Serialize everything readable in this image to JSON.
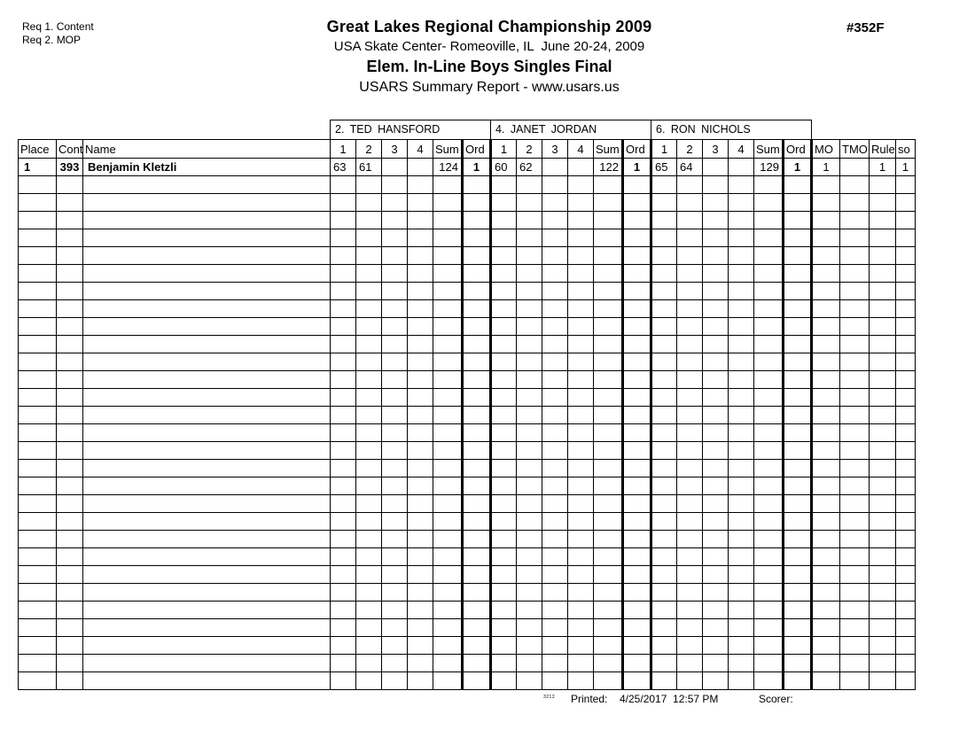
{
  "header": {
    "req_lines": [
      "Req 1. Content",
      "Req 2. MOP"
    ],
    "title": "Great Lakes Regional Championship 2009",
    "venue": "USA Skate Center- Romeoville, IL  June 20-24, 2009",
    "event": "Elem. In-Line Boys Singles Final",
    "report": "USARS Summary Report - www.usars.us",
    "report_number": "#352F"
  },
  "judges": [
    {
      "label": "2. TED HANSFORD"
    },
    {
      "label": "4. JANET JORDAN"
    },
    {
      "label": "6. RON NICHOLS"
    }
  ],
  "table": {
    "left_headers": [
      "Place",
      "Cont",
      "Name"
    ],
    "judge_subheaders": [
      "1",
      "2",
      "3",
      "4",
      "Sum",
      "Ord"
    ],
    "right_headers": [
      "MO",
      "TMO",
      "Rule",
      "so"
    ],
    "rows": [
      {
        "place": "1",
        "cont": "393",
        "name": "Benjamin Kletzli",
        "judges": [
          {
            "s1": "63",
            "s2": "61",
            "s3": "",
            "s4": "",
            "sum": "124",
            "ord": "1"
          },
          {
            "s1": "60",
            "s2": "62",
            "s3": "",
            "s4": "",
            "sum": "122",
            "ord": "1"
          },
          {
            "s1": "65",
            "s2": "64",
            "s3": "",
            "s4": "",
            "sum": "129",
            "ord": "1"
          }
        ],
        "mo": "1",
        "tmo": "",
        "rule": "1",
        "so": "1"
      }
    ],
    "empty_row_count": 29
  },
  "footer": {
    "code": "3212",
    "printed_label": "Printed:",
    "printed_value": "4/25/2017  12:57 PM",
    "scorer_label": "Scorer:"
  }
}
